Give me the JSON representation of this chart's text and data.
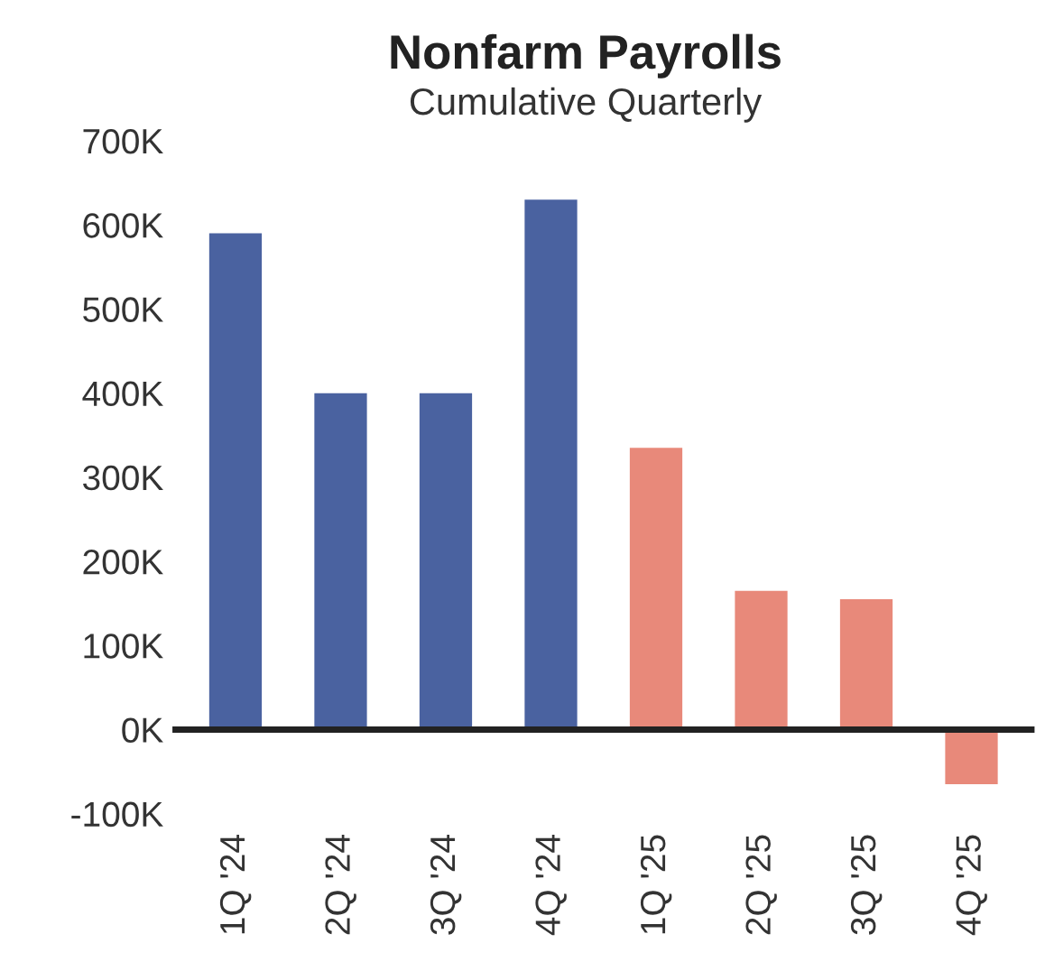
{
  "chart_data": {
    "type": "bar",
    "title": "Nonfarm Payrolls",
    "subtitle": "Cumulative Quarterly",
    "categories": [
      "1Q '24",
      "2Q '24",
      "3Q '24",
      "4Q '24",
      "1Q '25",
      "2Q '25",
      "3Q '25",
      "4Q '25"
    ],
    "values": [
      590000,
      400000,
      400000,
      630000,
      335000,
      165000,
      155000,
      -65000
    ],
    "colors": [
      "#4a62a0",
      "#4a62a0",
      "#4a62a0",
      "#4a62a0",
      "#e8897a",
      "#e8897a",
      "#e8897a",
      "#e8897a"
    ],
    "ylim": [
      -100000,
      700000
    ],
    "yticks": [
      {
        "value": -100000,
        "label": "-100K"
      },
      {
        "value": 0,
        "label": "0K"
      },
      {
        "value": 100000,
        "label": "100K"
      },
      {
        "value": 200000,
        "label": "200K"
      },
      {
        "value": 300000,
        "label": "300K"
      },
      {
        "value": 400000,
        "label": "400K"
      },
      {
        "value": 500000,
        "label": "500K"
      },
      {
        "value": 600000,
        "label": "600K"
      },
      {
        "value": 700000,
        "label": "700K"
      }
    ],
    "ref_lines": [
      {
        "axis": "y",
        "value": 0,
        "color": "#222222"
      }
    ],
    "grid": false,
    "legend": false
  }
}
